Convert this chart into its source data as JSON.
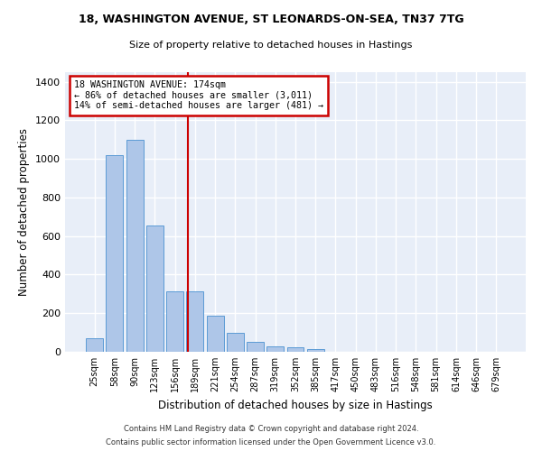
{
  "title1": "18, WASHINGTON AVENUE, ST LEONARDS-ON-SEA, TN37 7TG",
  "title2": "Size of property relative to detached houses in Hastings",
  "xlabel": "Distribution of detached houses by size in Hastings",
  "ylabel": "Number of detached properties",
  "categories": [
    "25sqm",
    "58sqm",
    "90sqm",
    "123sqm",
    "156sqm",
    "189sqm",
    "221sqm",
    "254sqm",
    "287sqm",
    "319sqm",
    "352sqm",
    "385sqm",
    "417sqm",
    "450sqm",
    "483sqm",
    "516sqm",
    "548sqm",
    "581sqm",
    "614sqm",
    "646sqm",
    "679sqm"
  ],
  "values": [
    70,
    1020,
    1100,
    655,
    315,
    315,
    185,
    100,
    50,
    30,
    25,
    15,
    0,
    0,
    0,
    0,
    0,
    0,
    0,
    0,
    0
  ],
  "bar_color": "#aec6e8",
  "bar_edgecolor": "#5b9bd5",
  "bg_color": "#e8eef8",
  "grid_color": "#ffffff",
  "vline_x": 4.67,
  "vline_color": "#cc0000",
  "annotation_line1": "18 WASHINGTON AVENUE: 174sqm",
  "annotation_line2": "← 86% of detached houses are smaller (3,011)",
  "annotation_line3": "14% of semi-detached houses are larger (481) →",
  "annotation_box_color": "#ffffff",
  "annotation_box_edgecolor": "#cc0000",
  "ylim": [
    0,
    1450
  ],
  "yticks": [
    0,
    200,
    400,
    600,
    800,
    1000,
    1200,
    1400
  ],
  "footer1": "Contains HM Land Registry data © Crown copyright and database right 2024.",
  "footer2": "Contains public sector information licensed under the Open Government Licence v3.0."
}
